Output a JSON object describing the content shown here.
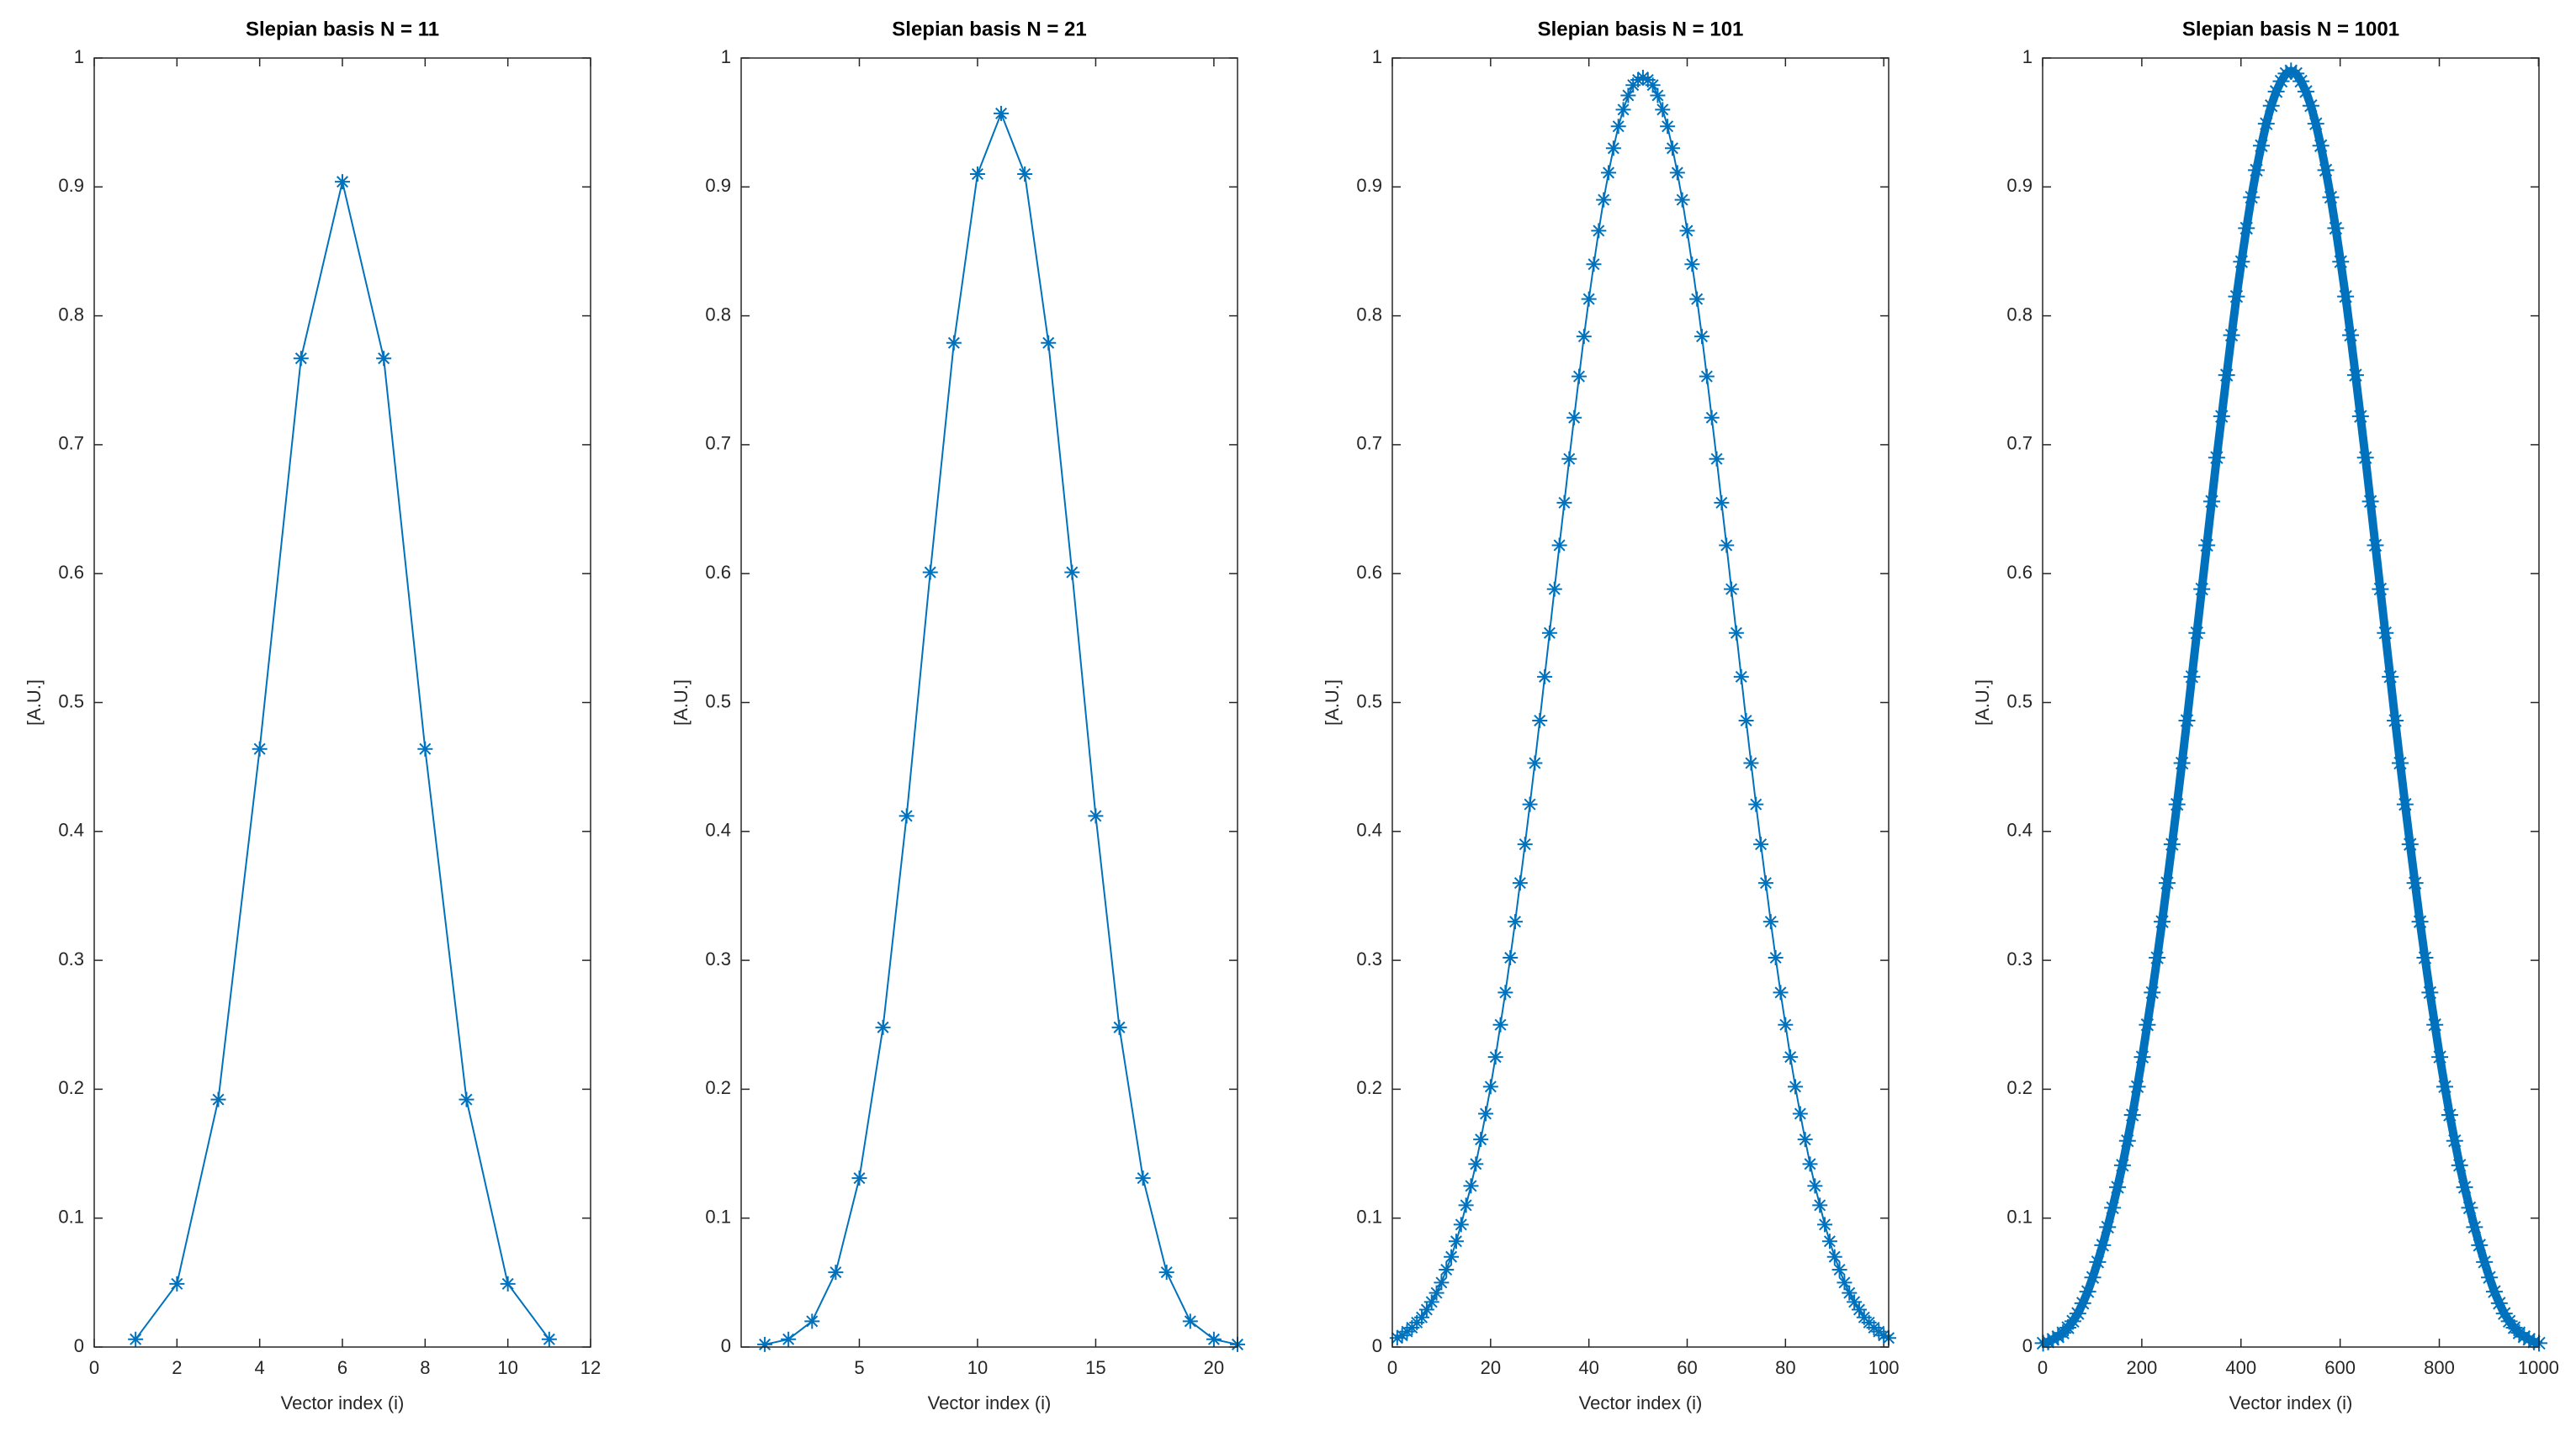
{
  "chart_data": [
    {
      "type": "line",
      "title": "Slepian basis N = 11",
      "xlabel": "Vector index (i)",
      "ylabel": "[A.U.]",
      "color": "#0072bd",
      "marker": "*",
      "x": [
        1,
        2,
        3,
        4,
        5,
        6,
        7,
        8,
        9,
        10,
        11
      ],
      "values": [
        0.006,
        0.049,
        0.192,
        0.464,
        0.767,
        0.904,
        0.767,
        0.464,
        0.192,
        0.049,
        0.006
      ],
      "xlim": [
        0,
        12
      ],
      "xticks": [
        0,
        2,
        4,
        6,
        8,
        10,
        12
      ],
      "ylim": [
        0,
        1
      ],
      "yticks": [
        0,
        0.1,
        0.2,
        0.3,
        0.4,
        0.5,
        0.6,
        0.7,
        0.8,
        0.9,
        1
      ]
    },
    {
      "type": "line",
      "title": "Slepian basis N = 21",
      "xlabel": "Vector index (i)",
      "ylabel": "[A.U.]",
      "color": "#0072bd",
      "marker": "*",
      "x": [
        1,
        2,
        3,
        4,
        5,
        6,
        7,
        8,
        9,
        10,
        11,
        12,
        13,
        14,
        15,
        16,
        17,
        18,
        19,
        20,
        21
      ],
      "values": [
        0.002,
        0.006,
        0.02,
        0.058,
        0.131,
        0.248,
        0.412,
        0.601,
        0.779,
        0.91,
        0.957,
        0.91,
        0.779,
        0.601,
        0.412,
        0.248,
        0.131,
        0.058,
        0.02,
        0.006,
        0.002
      ],
      "xlim": [
        0,
        21
      ],
      "xticks": [
        5,
        10,
        15,
        20
      ],
      "ylim": [
        0,
        1
      ],
      "yticks": [
        0,
        0.1,
        0.2,
        0.3,
        0.4,
        0.5,
        0.6,
        0.7,
        0.8,
        0.9,
        1
      ]
    },
    {
      "type": "line",
      "title": "Slepian basis N = 101",
      "xlabel": "Vector index (i)",
      "ylabel": "[A.U.]",
      "color": "#0072bd",
      "marker": "*",
      "x": [
        1,
        2,
        3,
        4,
        5,
        6,
        7,
        8,
        9,
        10,
        11,
        12,
        13,
        14,
        15,
        16,
        17,
        18,
        19,
        20,
        21,
        22,
        23,
        24,
        25,
        26,
        27,
        28,
        29,
        30,
        31,
        32,
        33,
        34,
        35,
        36,
        37,
        38,
        39,
        40,
        41,
        42,
        43,
        44,
        45,
        46,
        47,
        48,
        49,
        50,
        51,
        52,
        53,
        54,
        55,
        56,
        57,
        58,
        59,
        60,
        61,
        62,
        63,
        64,
        65,
        66,
        67,
        68,
        69,
        70,
        71,
        72,
        73,
        74,
        75,
        76,
        77,
        78,
        79,
        80,
        81,
        82,
        83,
        84,
        85,
        86,
        87,
        88,
        89,
        90,
        91,
        92,
        93,
        94,
        95,
        96,
        97,
        98,
        99,
        100,
        101
      ],
      "values": [
        0.007,
        0.009,
        0.012,
        0.015,
        0.019,
        0.023,
        0.029,
        0.035,
        0.042,
        0.05,
        0.06,
        0.07,
        0.082,
        0.095,
        0.11,
        0.125,
        0.142,
        0.161,
        0.181,
        0.202,
        0.225,
        0.25,
        0.275,
        0.302,
        0.33,
        0.36,
        0.39,
        0.421,
        0.453,
        0.486,
        0.52,
        0.554,
        0.588,
        0.622,
        0.655,
        0.689,
        0.721,
        0.753,
        0.784,
        0.813,
        0.84,
        0.866,
        0.89,
        0.911,
        0.93,
        0.947,
        0.96,
        0.971,
        0.979,
        0.983,
        0.985,
        0.983,
        0.979,
        0.971,
        0.96,
        0.947,
        0.93,
        0.911,
        0.89,
        0.866,
        0.84,
        0.813,
        0.784,
        0.753,
        0.721,
        0.689,
        0.655,
        0.622,
        0.588,
        0.554,
        0.52,
        0.486,
        0.453,
        0.421,
        0.39,
        0.36,
        0.33,
        0.302,
        0.275,
        0.25,
        0.225,
        0.202,
        0.181,
        0.161,
        0.142,
        0.125,
        0.11,
        0.095,
        0.082,
        0.07,
        0.06,
        0.05,
        0.042,
        0.035,
        0.029,
        0.023,
        0.019,
        0.015,
        0.012,
        0.009,
        0.007
      ],
      "xlim": [
        0,
        101
      ],
      "xticks": [
        0,
        20,
        40,
        60,
        80,
        100
      ],
      "ylim": [
        0,
        1
      ],
      "yticks": [
        0,
        0.1,
        0.2,
        0.3,
        0.4,
        0.5,
        0.6,
        0.7,
        0.8,
        0.9,
        1
      ]
    },
    {
      "type": "line",
      "title": "Slepian basis N = 1001",
      "xlabel": "Vector index (i)",
      "ylabel": "[A.U.]",
      "color": "#0072bd",
      "marker": "*",
      "dense": true,
      "x": [
        1,
        11,
        21,
        31,
        41,
        51,
        61,
        71,
        81,
        91,
        101,
        111,
        121,
        131,
        141,
        151,
        161,
        171,
        181,
        191,
        201,
        211,
        221,
        231,
        241,
        251,
        261,
        271,
        281,
        291,
        301,
        311,
        321,
        331,
        341,
        351,
        361,
        371,
        381,
        391,
        401,
        411,
        421,
        431,
        441,
        451,
        461,
        471,
        481,
        491,
        501,
        511,
        521,
        531,
        541,
        551,
        561,
        571,
        581,
        591,
        601,
        611,
        621,
        631,
        641,
        651,
        661,
        671,
        681,
        691,
        701,
        711,
        721,
        731,
        741,
        751,
        761,
        771,
        781,
        791,
        801,
        811,
        821,
        831,
        841,
        851,
        861,
        871,
        881,
        891,
        901,
        911,
        921,
        931,
        941,
        951,
        961,
        971,
        981,
        991,
        1001
      ],
      "values": [
        0.003,
        0.004,
        0.006,
        0.008,
        0.011,
        0.015,
        0.02,
        0.026,
        0.034,
        0.043,
        0.054,
        0.066,
        0.079,
        0.093,
        0.108,
        0.124,
        0.141,
        0.16,
        0.18,
        0.202,
        0.225,
        0.25,
        0.275,
        0.302,
        0.33,
        0.36,
        0.39,
        0.421,
        0.453,
        0.486,
        0.52,
        0.554,
        0.588,
        0.622,
        0.656,
        0.69,
        0.722,
        0.754,
        0.785,
        0.815,
        0.842,
        0.868,
        0.892,
        0.913,
        0.932,
        0.949,
        0.963,
        0.974,
        0.982,
        0.988,
        0.99,
        0.988,
        0.982,
        0.974,
        0.963,
        0.949,
        0.932,
        0.913,
        0.892,
        0.868,
        0.842,
        0.815,
        0.785,
        0.754,
        0.722,
        0.69,
        0.656,
        0.622,
        0.588,
        0.554,
        0.52,
        0.486,
        0.453,
        0.421,
        0.39,
        0.36,
        0.33,
        0.302,
        0.275,
        0.25,
        0.225,
        0.202,
        0.18,
        0.16,
        0.141,
        0.124,
        0.108,
        0.093,
        0.079,
        0.066,
        0.054,
        0.043,
        0.034,
        0.026,
        0.02,
        0.015,
        0.011,
        0.008,
        0.006,
        0.004,
        0.003
      ],
      "xlim": [
        0,
        1001
      ],
      "xticks": [
        0,
        200,
        400,
        600,
        800,
        1000
      ],
      "ylim": [
        0,
        1
      ],
      "yticks": [
        0,
        0.1,
        0.2,
        0.3,
        0.4,
        0.5,
        0.6,
        0.7,
        0.8,
        0.9,
        1
      ]
    }
  ]
}
